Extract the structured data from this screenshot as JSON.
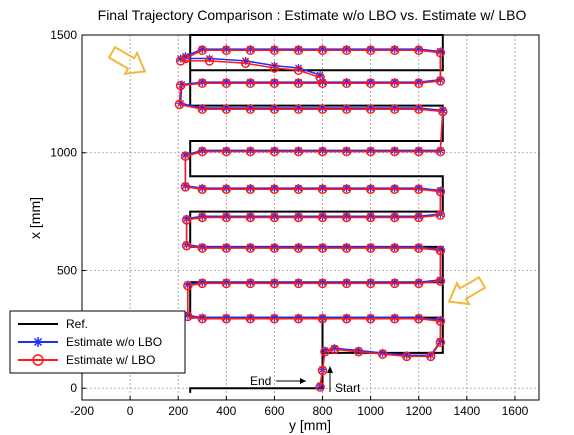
{
  "chart_data": {
    "type": "line",
    "title": "Final Trajectory Comparison : Estimate w/o LBO vs. Estimate w/ LBO",
    "xlabel": "y [mm]",
    "ylabel": "x [mm]",
    "xlim": [
      -200,
      1700
    ],
    "ylim": [
      -50,
      1500
    ],
    "xticks": [
      -200,
      0,
      200,
      400,
      600,
      800,
      1000,
      1200,
      1400,
      1600
    ],
    "yticks": [
      0,
      500,
      1000,
      1500
    ],
    "grid": true,
    "legend_position": "bottom-left",
    "annotations": [
      {
        "text": "End",
        "x": 600,
        "y": 35
      },
      {
        "text": "Start",
        "x": 830,
        "y": 10
      }
    ],
    "series": [
      {
        "name": "Ref.",
        "color": "#000000",
        "marker": "none",
        "x": [
          800,
          800,
          1300,
          1300,
          250,
          250,
          1300,
          1300,
          250,
          250,
          1300,
          1300,
          250,
          250,
          1300,
          1300,
          250,
          250,
          1300,
          1300,
          250,
          250,
          1300,
          1300,
          250,
          250,
          1300,
          1300,
          250,
          250,
          1300,
          1300,
          800,
          800,
          250,
          250
        ],
        "y": [
          0,
          150,
          150,
          300,
          300,
          450,
          450,
          600,
          600,
          750,
          750,
          900,
          900,
          1050,
          1050,
          1200,
          1200,
          1350,
          1350,
          1500,
          1500,
          1200,
          1200,
          1050,
          1050,
          900,
          900,
          750,
          750,
          600,
          600,
          300,
          300,
          0,
          0,
          -20
        ]
      },
      {
        "name": "Estimate w/o LBO",
        "color": "#1f2dff",
        "marker": "asterisk",
        "x": [
          790,
          800,
          810,
          850,
          950,
          1050,
          1150,
          1250,
          1290,
          1290,
          1200,
          1100,
          1000,
          900,
          800,
          700,
          600,
          500,
          400,
          300,
          240,
          240,
          300,
          400,
          500,
          600,
          700,
          800,
          900,
          1000,
          1100,
          1200,
          1290,
          1290,
          1200,
          1100,
          1000,
          900,
          800,
          700,
          600,
          500,
          400,
          300,
          235,
          235,
          300,
          400,
          500,
          600,
          700,
          800,
          900,
          1000,
          1100,
          1200,
          1290,
          1290,
          1200,
          1100,
          1000,
          900,
          800,
          700,
          600,
          500,
          400,
          300,
          230,
          230,
          300,
          400,
          500,
          600,
          700,
          800,
          900,
          1000,
          1100,
          1200,
          1290,
          1300,
          1200,
          1100,
          1000,
          900,
          800,
          700,
          600,
          500,
          400,
          300,
          210,
          215,
          300,
          400,
          500,
          600,
          700,
          800,
          900,
          1000,
          1100,
          1200,
          1290,
          1290,
          1200,
          1100,
          1000,
          900,
          800,
          700,
          600,
          500,
          400,
          300,
          230,
          210,
          330,
          480,
          600,
          700,
          790
        ],
        "y": [
          10,
          80,
          160,
          170,
          160,
          150,
          140,
          140,
          200,
          290,
          300,
          300,
          300,
          300,
          300,
          300,
          300,
          300,
          300,
          300,
          310,
          440,
          450,
          450,
          450,
          450,
          450,
          450,
          450,
          450,
          450,
          450,
          460,
          590,
          600,
          600,
          600,
          600,
          600,
          600,
          600,
          600,
          600,
          600,
          610,
          720,
          730,
          730,
          730,
          730,
          730,
          730,
          730,
          730,
          730,
          730,
          740,
          840,
          850,
          850,
          850,
          850,
          850,
          850,
          850,
          850,
          850,
          850,
          860,
          990,
          1010,
          1010,
          1010,
          1010,
          1010,
          1010,
          1010,
          1010,
          1010,
          1010,
          1010,
          1180,
          1190,
          1190,
          1190,
          1190,
          1190,
          1190,
          1190,
          1190,
          1190,
          1190,
          1210,
          1290,
          1300,
          1300,
          1300,
          1300,
          1300,
          1300,
          1300,
          1300,
          1300,
          1300,
          1310,
          1430,
          1440,
          1440,
          1440,
          1440,
          1440,
          1440,
          1440,
          1440,
          1440,
          1440,
          1410,
          1400,
          1400,
          1390,
          1370,
          1360,
          1330
        ]
      },
      {
        "name": "Estimate w/ LBO",
        "color": "#ff1a1a",
        "marker": "circle",
        "x": [
          790,
          800,
          810,
          850,
          950,
          1050,
          1150,
          1250,
          1290,
          1290,
          1200,
          1100,
          1000,
          900,
          800,
          700,
          600,
          500,
          400,
          300,
          240,
          240,
          300,
          400,
          500,
          600,
          700,
          800,
          900,
          1000,
          1100,
          1200,
          1290,
          1290,
          1200,
          1100,
          1000,
          900,
          800,
          700,
          600,
          500,
          400,
          300,
          235,
          235,
          300,
          400,
          500,
          600,
          700,
          800,
          900,
          1000,
          1100,
          1200,
          1290,
          1290,
          1200,
          1100,
          1000,
          900,
          800,
          700,
          600,
          500,
          400,
          300,
          230,
          230,
          300,
          400,
          500,
          600,
          700,
          800,
          900,
          1000,
          1100,
          1200,
          1290,
          1300,
          1200,
          1100,
          1000,
          900,
          800,
          700,
          600,
          500,
          400,
          300,
          205,
          210,
          300,
          400,
          500,
          600,
          700,
          800,
          900,
          1000,
          1100,
          1200,
          1290,
          1290,
          1200,
          1100,
          1000,
          900,
          800,
          700,
          600,
          500,
          400,
          300,
          230,
          210,
          330,
          480,
          600,
          700,
          790
        ],
        "y": [
          5,
          75,
          155,
          165,
          155,
          145,
          135,
          135,
          195,
          285,
          295,
          295,
          295,
          295,
          295,
          295,
          295,
          295,
          295,
          295,
          305,
          435,
          445,
          445,
          445,
          445,
          445,
          445,
          445,
          445,
          445,
          445,
          455,
          585,
          595,
          595,
          595,
          595,
          595,
          595,
          595,
          595,
          595,
          595,
          605,
          715,
          725,
          725,
          725,
          725,
          725,
          725,
          725,
          725,
          725,
          725,
          735,
          835,
          845,
          845,
          845,
          845,
          845,
          845,
          845,
          845,
          845,
          845,
          855,
          985,
          1005,
          1005,
          1005,
          1005,
          1005,
          1005,
          1005,
          1005,
          1005,
          1005,
          1005,
          1175,
          1185,
          1185,
          1185,
          1185,
          1185,
          1185,
          1185,
          1185,
          1185,
          1185,
          1205,
          1285,
          1295,
          1295,
          1295,
          1295,
          1295,
          1295,
          1295,
          1295,
          1295,
          1295,
          1305,
          1425,
          1435,
          1435,
          1435,
          1435,
          1435,
          1435,
          1435,
          1435,
          1435,
          1435,
          1400,
          1390,
          1390,
          1380,
          1360,
          1350,
          1320
        ]
      }
    ]
  }
}
